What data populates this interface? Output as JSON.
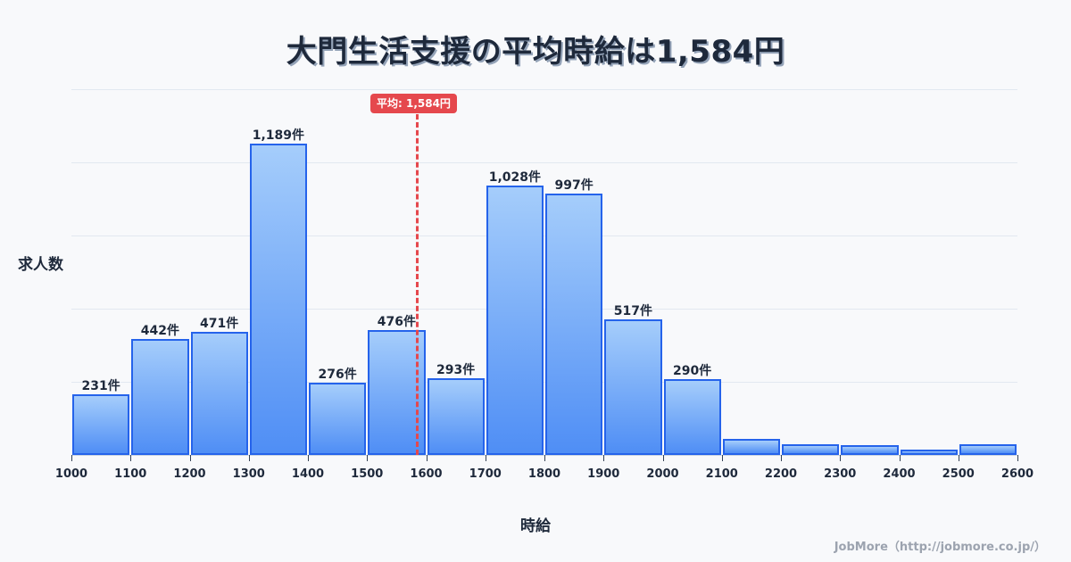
{
  "title": "大門生活支援の平均時給は1,584円",
  "mean_badge": "平均: 1,584円",
  "ylabel": "求人数",
  "xlabel": "時給",
  "credit": "JobMore（http://jobmore.co.jp/）",
  "colors": {
    "bar_fill_top": "#a5cdfb",
    "bar_fill_bottom": "#4f8ef5",
    "bar_border": "#2563eb",
    "mean_line": "#e5484d",
    "title": "#1e293b"
  },
  "chart_data": {
    "type": "bar",
    "title": "大門生活支援の平均時給は1,584円",
    "xlabel": "時給",
    "ylabel": "求人数",
    "bin_edges": [
      1000,
      1100,
      1200,
      1300,
      1400,
      1500,
      1600,
      1700,
      1800,
      1900,
      2000,
      2100,
      2200,
      2300,
      2400,
      2500,
      2600
    ],
    "categories": [
      "1000-1100",
      "1100-1200",
      "1200-1300",
      "1300-1400",
      "1400-1500",
      "1500-1600",
      "1600-1700",
      "1700-1800",
      "1800-1900",
      "1900-2000",
      "2000-2100",
      "2100-2200",
      "2200-2300",
      "2300-2400",
      "2400-2500",
      "2500-2600"
    ],
    "values": [
      231,
      442,
      471,
      1189,
      276,
      476,
      293,
      1028,
      997,
      517,
      290,
      60,
      40,
      37,
      22,
      40
    ],
    "labels": [
      "231件",
      "442件",
      "471件",
      "1,189件",
      "276件",
      "476件",
      "293件",
      "1,028件",
      "997件",
      "517件",
      "290件",
      "",
      "",
      "",
      "",
      ""
    ],
    "mean": 1584,
    "mean_label": "平均: 1,584円",
    "xticks": [
      "1000",
      "1100",
      "1200",
      "1300",
      "1400",
      "1500",
      "1600",
      "1700",
      "1800",
      "1900",
      "2000",
      "2100",
      "2200",
      "2300",
      "2400",
      "2500",
      "2600"
    ],
    "ylim": [
      0,
      1400
    ],
    "grid": true,
    "legend": null
  }
}
